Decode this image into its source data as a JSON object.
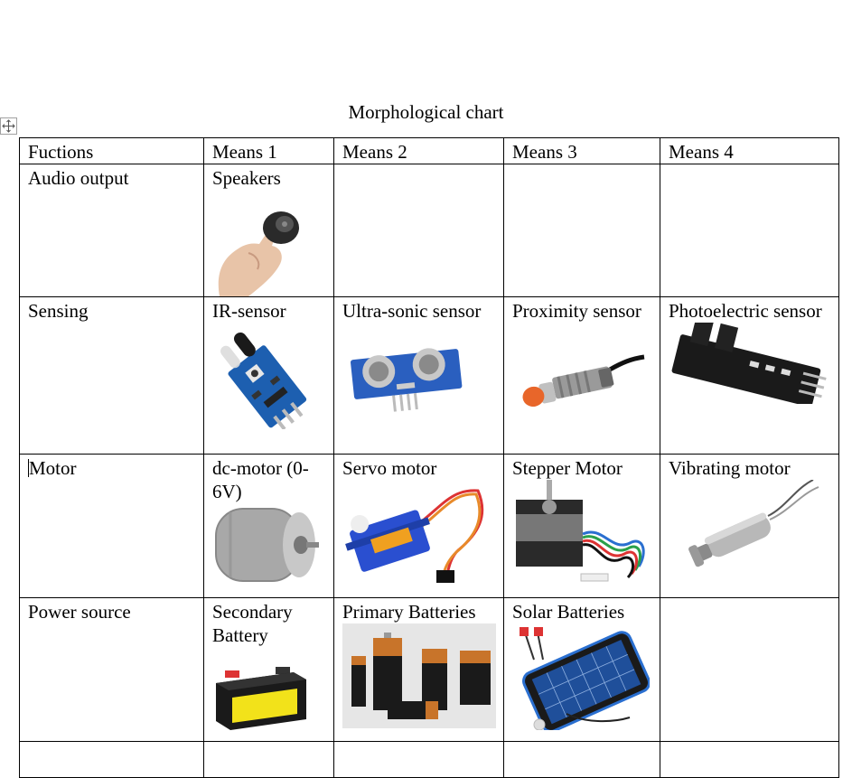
{
  "document": {
    "title": "Morphological chart",
    "headers": [
      "Fuctions",
      "Means 1",
      "Means 2",
      "Means 3",
      "Means 4"
    ],
    "rows": [
      {
        "function": "Audio output",
        "means": [
          "Speakers",
          "",
          "",
          ""
        ]
      },
      {
        "function": "Sensing",
        "means": [
          "IR-sensor",
          "Ultra-sonic sensor",
          "Proximity sensor",
          "Photoelectric sensor"
        ]
      },
      {
        "function": "Motor",
        "means": [
          "dc-motor (0-6V)",
          "Servo motor",
          "Stepper Motor",
          "Vibrating motor"
        ]
      },
      {
        "function": "Power source",
        "means": [
          "Secondary Battery",
          "Primary Batteries",
          "Solar Batteries",
          ""
        ]
      }
    ]
  },
  "icons": {
    "move_handle": "move-arrows-icon"
  },
  "colors": {
    "pcb_blue": "#1d5fb0",
    "servo_blue": "#2a4fd0",
    "battery_yellow": "#f2e21a",
    "copper": "#c8742a"
  }
}
